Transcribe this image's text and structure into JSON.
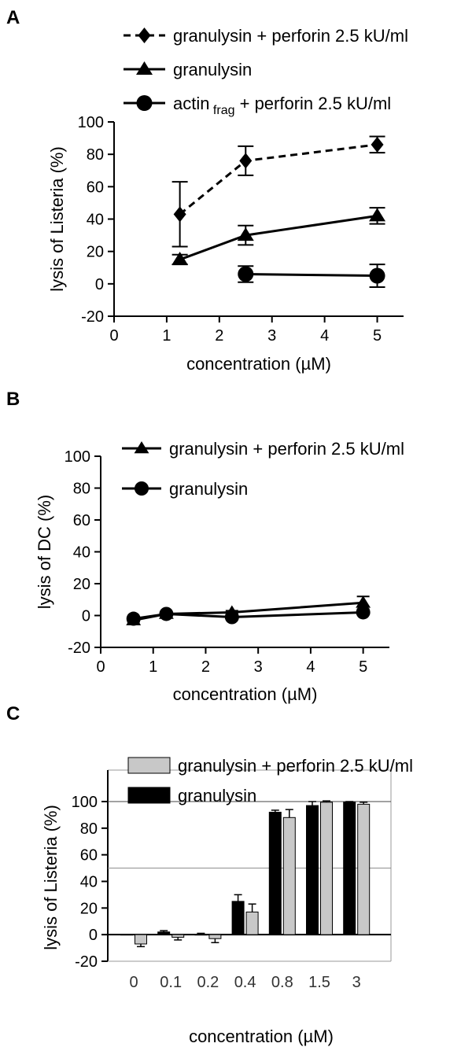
{
  "chart_data": [
    {
      "panel": "A",
      "type": "line",
      "xlabel": "concentration (µM)",
      "ylabel": "lysis of Listeria (%)",
      "xlim": [
        0,
        5.5
      ],
      "ylim": [
        -20,
        100
      ],
      "xticks": [
        "0",
        "1",
        "2",
        "3",
        "4",
        "5"
      ],
      "yticks": [
        "-20",
        "0",
        "20",
        "40",
        "60",
        "80",
        "100"
      ],
      "series": [
        {
          "name": "granulysin + perforin 2.5 kU/ml",
          "marker": "diamond",
          "dash": true,
          "x": [
            1.25,
            2.5,
            5
          ],
          "y": [
            43,
            76,
            86
          ],
          "err": [
            20,
            9,
            5
          ]
        },
        {
          "name": "granulysin",
          "marker": "triangle",
          "dash": false,
          "x": [
            1.25,
            2.5,
            5
          ],
          "y": [
            15,
            30,
            42
          ],
          "err": [
            3,
            6,
            5
          ]
        },
        {
          "name_main": "actin",
          "name_sub": "frag",
          "name_rest": " + perforin 2.5 kU/ml",
          "marker": "circle",
          "dash": false,
          "x": [
            2.5,
            5
          ],
          "y": [
            6,
            5
          ],
          "err": [
            5,
            7
          ]
        }
      ]
    },
    {
      "panel": "B",
      "type": "line",
      "xlabel": "concentration (µM)",
      "ylabel": "lysis of DC (%)",
      "xlim": [
        0,
        5.5
      ],
      "ylim": [
        -20,
        100
      ],
      "xticks": [
        "0",
        "1",
        "2",
        "3",
        "4",
        "5"
      ],
      "yticks": [
        "-20",
        "0",
        "20",
        "40",
        "60",
        "80",
        "100"
      ],
      "series": [
        {
          "name": "granulysin + perforin 2.5 kU/ml",
          "marker": "triangle",
          "dash": false,
          "x": [
            0.625,
            1.25,
            2.5,
            5
          ],
          "y": [
            -3,
            1,
            2,
            8
          ],
          "err": [
            1,
            1,
            1,
            4
          ]
        },
        {
          "name": "granulysin",
          "marker": "circle",
          "dash": false,
          "x": [
            0.625,
            1.25,
            2.5,
            5
          ],
          "y": [
            -2,
            1,
            -1,
            2
          ],
          "err": [
            0,
            0,
            0,
            0
          ]
        }
      ]
    },
    {
      "panel": "C",
      "type": "bar",
      "xlabel": "concentration (µM)",
      "ylabel": "lysis of Listeria (%)",
      "ylim": [
        -20,
        100
      ],
      "yticks": [
        "-20",
        "0",
        "20",
        "40",
        "60",
        "80",
        "100"
      ],
      "hlines": [
        50,
        100
      ],
      "categories": [
        "0",
        "0.1",
        "0.2",
        "0.4",
        "0.8",
        "1.5",
        "3"
      ],
      "series": [
        {
          "name": "granulysin",
          "color": "#000000",
          "values": [
            0,
            2,
            0,
            25,
            92,
            97,
            99.5
          ],
          "err": [
            0,
            1,
            1,
            5,
            1.5,
            3,
            0.5
          ]
        },
        {
          "name": "granulysin + perforin 2.5 kU/ml",
          "color": "#c8c8c8",
          "values": [
            -7,
            -2,
            -3,
            17,
            88,
            99.5,
            98
          ],
          "err": [
            2,
            2,
            3,
            6,
            6,
            1,
            1.5
          ]
        }
      ],
      "legend_order": [
        1,
        0
      ]
    }
  ]
}
